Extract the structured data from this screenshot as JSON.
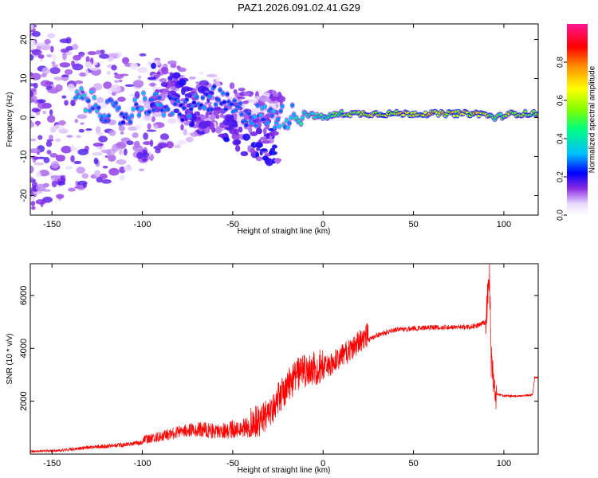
{
  "title": "PAZ1.2026.091.02.41.G29",
  "chart_data": [
    {
      "type": "heatmap",
      "title": "PAZ1.2026.091.02.41.G29",
      "xlabel": "Height of straight line (km)",
      "ylabel": "Frequency (Hz)",
      "xlim": [
        -162,
        119
      ],
      "ylim": [
        -25,
        24
      ],
      "x_ticks": [
        -150,
        -100,
        -50,
        0,
        50,
        100
      ],
      "y_ticks": [
        -20,
        -10,
        0,
        10,
        20
      ],
      "colorbar": {
        "label": "Normalized spectral amplitude",
        "range": [
          0,
          1
        ],
        "ticks": [
          0.0,
          0.2,
          0.4,
          0.6,
          0.8
        ],
        "colormap": [
          "#e8d8ff",
          "#8a2be2",
          "#0000ff",
          "#00bfff",
          "#00ff7f",
          "#7fff00",
          "#ffff00",
          "#ff8c00",
          "#ff0000",
          "#ff1493"
        ]
      },
      "ridge": [
        {
          "x": -125,
          "f": 3,
          "amp": 0.35
        },
        {
          "x": -110,
          "f": 0,
          "amp": 0.3
        },
        {
          "x": -100,
          "f": 4,
          "amp": 0.35
        },
        {
          "x": -78,
          "f": 2,
          "amp": 0.3
        },
        {
          "x": -60,
          "f": 5,
          "amp": 0.32
        },
        {
          "x": -45,
          "f": 1,
          "amp": 0.3
        },
        {
          "x": -25,
          "f": 0,
          "amp": 0.35
        },
        {
          "x": -10,
          "f": 1,
          "amp": 0.45
        },
        {
          "x": 0,
          "f": 0,
          "amp": 0.5
        },
        {
          "x": 10,
          "f": 1,
          "amp": 0.6
        },
        {
          "x": 30,
          "f": 1,
          "amp": 0.7
        },
        {
          "x": 50,
          "f": 1,
          "amp": 0.8
        },
        {
          "x": 70,
          "f": 1,
          "amp": 0.8
        },
        {
          "x": 88,
          "f": 1,
          "amp": 0.75
        },
        {
          "x": 95,
          "f": 0,
          "amp": 0.55
        },
        {
          "x": 105,
          "f": 1,
          "amp": 0.65
        },
        {
          "x": 119,
          "f": 1,
          "amp": 0.65
        }
      ]
    },
    {
      "type": "line",
      "xlabel": "Height of straight line (km)",
      "ylabel": "SNR (10 * v/v)",
      "xlim": [
        -162,
        119
      ],
      "ylim": [
        0,
        7200
      ],
      "x_ticks": [
        -150,
        -100,
        -50,
        0,
        50,
        100
      ],
      "y_ticks": [
        2000,
        4000,
        6000
      ],
      "series": [
        {
          "color": "#ff0000",
          "x": [
            -162,
            -150,
            -140,
            -130,
            -120,
            -110,
            -100,
            -90,
            -80,
            -70,
            -60,
            -50,
            -40,
            -35,
            -30,
            -25,
            -20,
            -15,
            -10,
            -5,
            0,
            5,
            10,
            15,
            20,
            25,
            30,
            40,
            50,
            60,
            70,
            80,
            85,
            90,
            92,
            93,
            95,
            100,
            110,
            116,
            117,
            119
          ],
          "y": [
            100,
            120,
            180,
            250,
            300,
            350,
            450,
            550,
            700,
            800,
            700,
            750,
            800,
            900,
            1200,
            1700,
            2200,
            2600,
            2800,
            2900,
            3000,
            3200,
            3400,
            3700,
            4000,
            4300,
            4500,
            4700,
            4750,
            4800,
            4800,
            4800,
            4850,
            5000,
            6800,
            3500,
            2300,
            2200,
            2200,
            2250,
            2900,
            2900
          ]
        }
      ]
    }
  ]
}
